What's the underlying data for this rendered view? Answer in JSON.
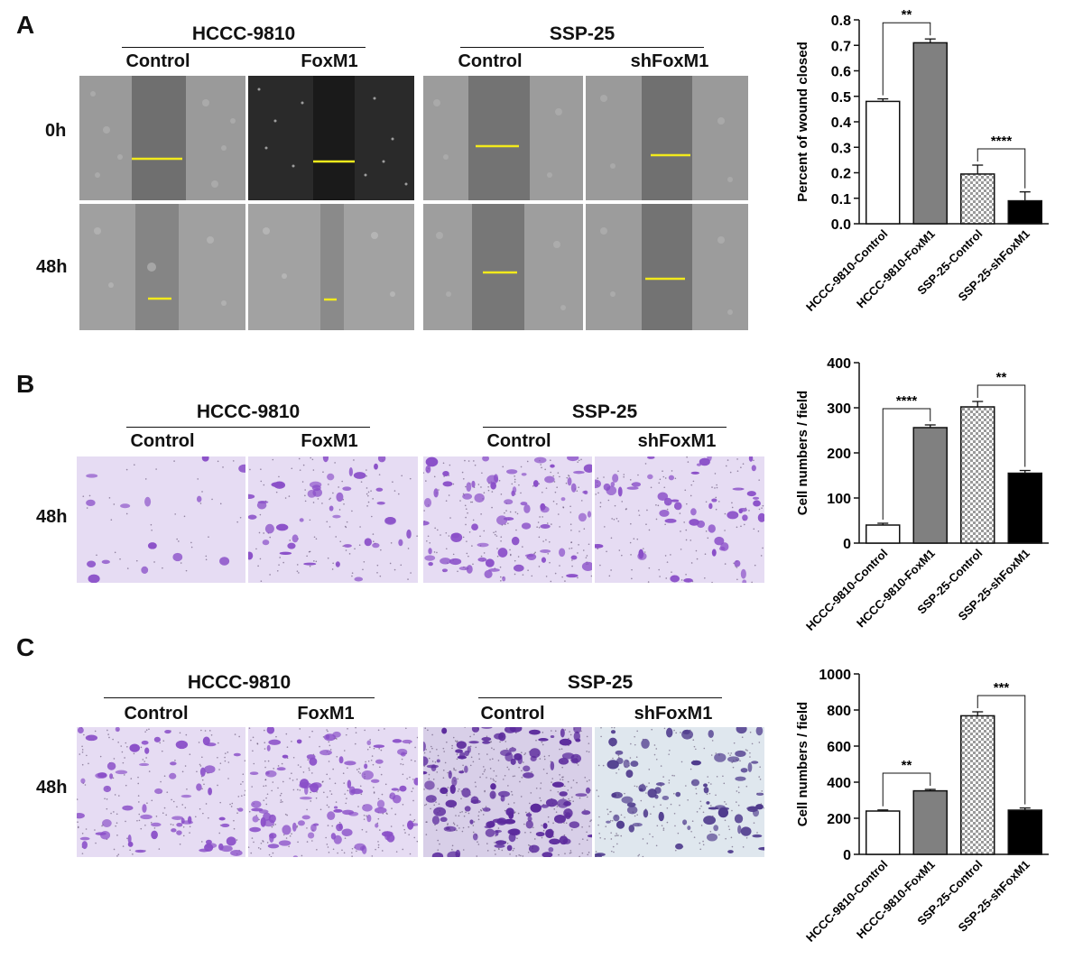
{
  "figure": {
    "panels": [
      {
        "letter": "A",
        "groups": [
          {
            "title": "HCCC-9810",
            "columns": [
              "Control",
              "FoxM1"
            ]
          },
          {
            "title": "SSP-25",
            "columns": [
              "Control",
              "shFoxM1"
            ]
          }
        ],
        "rows": [
          "0h",
          "48h"
        ]
      },
      {
        "letter": "B",
        "groups": [
          {
            "title": "HCCC-9810",
            "columns": [
              "Control",
              "FoxM1"
            ]
          },
          {
            "title": "SSP-25",
            "columns": [
              "Control",
              "shFoxM1"
            ]
          }
        ],
        "rows": [
          "48h"
        ]
      },
      {
        "letter": "C",
        "groups": [
          {
            "title": "HCCC-9810",
            "columns": [
              "Control",
              "FoxM1"
            ]
          },
          {
            "title": "SSP-25",
            "columns": [
              "Control",
              "shFoxM1"
            ]
          }
        ],
        "rows": [
          "48h"
        ]
      }
    ],
    "colors": {
      "wound_line": "#f2ea1c",
      "stain": "#8a4fc8",
      "stain_bg": "#e6dcf3",
      "bar_gray": "#808080",
      "bar_black": "#000000"
    }
  },
  "chart_data": [
    {
      "type": "bar",
      "panel": "A",
      "ylabel": "Percent of wound closed",
      "categories": [
        "HCCC-9810-Control",
        "HCCC-9810-FoxM1",
        "SSP-25-Control",
        "SSP-25-shFoxM1"
      ],
      "values": [
        0.48,
        0.71,
        0.195,
        0.09
      ],
      "errors": [
        0.01,
        0.015,
        0.035,
        0.035
      ],
      "fills": [
        "white",
        "gray",
        "checker",
        "black"
      ],
      "ylim": [
        0,
        0.8
      ],
      "yticks": [
        "0.0",
        "0.1",
        "0.2",
        "0.3",
        "0.4",
        "0.5",
        "0.6",
        "0.7",
        "0.8"
      ],
      "significance": [
        {
          "from": 0,
          "to": 1,
          "label": "**"
        },
        {
          "from": 2,
          "to": 3,
          "label": "****"
        }
      ]
    },
    {
      "type": "bar",
      "panel": "B",
      "ylabel": "Cell numbers / field",
      "categories": [
        "HCCC-9810-Control",
        "HCCC-9810-FoxM1",
        "SSP-25-Control",
        "SSP-25-shFoxM1"
      ],
      "values": [
        40,
        256,
        302,
        155
      ],
      "errors": [
        4,
        6,
        12,
        6
      ],
      "fills": [
        "white",
        "gray",
        "checker",
        "black"
      ],
      "ylim": [
        0,
        400
      ],
      "yticks": [
        "0",
        "100",
        "200",
        "300",
        "400"
      ],
      "significance": [
        {
          "from": 0,
          "to": 1,
          "label": "****"
        },
        {
          "from": 2,
          "to": 3,
          "label": "**"
        }
      ]
    },
    {
      "type": "bar",
      "panel": "C",
      "ylabel": "Cell numbers / field",
      "categories": [
        "HCCC-9810-Control",
        "HCCC-9810-FoxM1",
        "SSP-25-Control",
        "SSP-25-shFoxM1"
      ],
      "values": [
        240,
        352,
        768,
        245
      ],
      "errors": [
        6,
        8,
        22,
        12
      ],
      "fills": [
        "white",
        "gray",
        "checker",
        "black"
      ],
      "ylim": [
        0,
        1000
      ],
      "yticks": [
        "0",
        "200",
        "400",
        "600",
        "800",
        "1000"
      ],
      "significance": [
        {
          "from": 0,
          "to": 1,
          "label": "**"
        },
        {
          "from": 2,
          "to": 3,
          "label": "***"
        }
      ]
    }
  ]
}
